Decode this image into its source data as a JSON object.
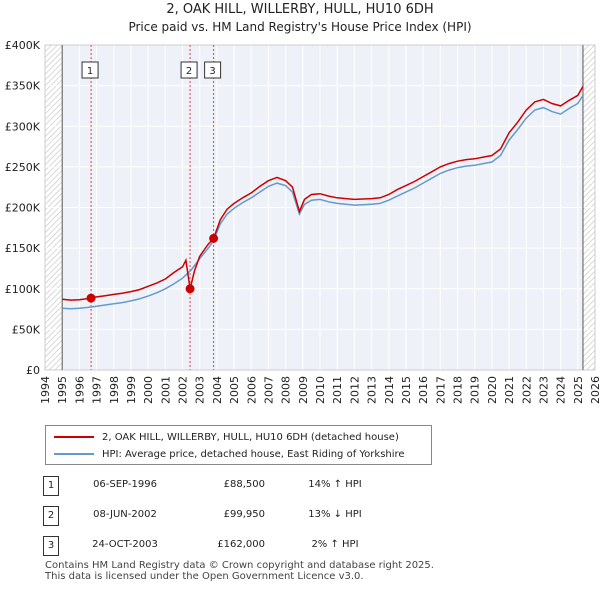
{
  "chart_data": {
    "type": "line",
    "title": "2, OAK HILL, WILLERBY, HULL, HU10 6DH",
    "subtitle": "Price paid vs. HM Land Registry's House Price Index (HPI)",
    "xlim": [
      1994,
      2026
    ],
    "ylim": [
      0,
      400000
    ],
    "y_ticks": [
      0,
      50000,
      100000,
      150000,
      200000,
      250000,
      300000,
      350000,
      400000
    ],
    "y_tick_labels": [
      "£0",
      "£50K",
      "£100K",
      "£150K",
      "£200K",
      "£250K",
      "£300K",
      "£350K",
      "£400K"
    ],
    "x_ticks": [
      1994,
      1995,
      1996,
      1997,
      1998,
      1999,
      2000,
      2001,
      2002,
      2003,
      2004,
      2005,
      2006,
      2007,
      2008,
      2009,
      2010,
      2011,
      2012,
      2013,
      2014,
      2015,
      2016,
      2017,
      2018,
      2019,
      2020,
      2021,
      2022,
      2023,
      2024,
      2025,
      2026
    ],
    "x_tick_labels": [
      "1994",
      "1995",
      "1996",
      "1997",
      "1998",
      "1999",
      "2000",
      "2001",
      "2002",
      "2003",
      "2004",
      "2005",
      "2006",
      "2007",
      "2008",
      "2009",
      "2010",
      "2011",
      "2012",
      "2013",
      "2014",
      "2015",
      "2016",
      "2017",
      "2018",
      "2019",
      "2020",
      "2021",
      "2022",
      "2023",
      "2024",
      "2025",
      "2026"
    ],
    "data_start": 1995.0,
    "data_end": 2025.3,
    "grid": true,
    "series": [
      {
        "name": "2, OAK HILL, WILLERBY, HULL, HU10 6DH (detached house)",
        "color": "#cc0000",
        "x": [
          1995,
          1995.5,
          1996,
          1996.68,
          1997,
          1997.5,
          1998,
          1998.5,
          1999,
          1999.5,
          2000,
          2000.5,
          2001,
          2001.5,
          2002,
          2002.2,
          2002.44,
          2002.7,
          2003,
          2003.5,
          2003.81,
          2004.2,
          2004.6,
          2005,
          2005.5,
          2006,
          2006.5,
          2007,
          2007.5,
          2008,
          2008.4,
          2008.8,
          2009.1,
          2009.5,
          2010,
          2010.5,
          2011,
          2011.5,
          2012,
          2012.5,
          2013,
          2013.5,
          2014,
          2014.5,
          2015,
          2015.5,
          2016,
          2016.5,
          2017,
          2017.5,
          2018,
          2018.5,
          2019,
          2019.5,
          2020,
          2020.5,
          2021,
          2021.5,
          2022,
          2022.5,
          2023,
          2023.5,
          2024,
          2024.5,
          2025,
          2025.3
        ],
        "values": [
          87000,
          86000,
          86500,
          88500,
          90000,
          91500,
          93000,
          94500,
          96500,
          99000,
          103000,
          107000,
          112000,
          120000,
          127000,
          135000,
          99950,
          122000,
          140000,
          155000,
          162000,
          185000,
          198000,
          205000,
          212000,
          218000,
          226000,
          233000,
          237000,
          233000,
          225000,
          195000,
          210000,
          216000,
          217000,
          214000,
          212000,
          211000,
          210000,
          210500,
          211000,
          212000,
          216000,
          222000,
          227000,
          232000,
          238000,
          244000,
          250000,
          254000,
          257000,
          259000,
          260000,
          262000,
          264000,
          272000,
          292000,
          305000,
          320000,
          330000,
          333000,
          328000,
          325000,
          332000,
          338000,
          349000
        ]
      },
      {
        "name": "HPI: Average price, detached house, East Riding of Yorkshire",
        "color": "#6699cc",
        "x": [
          1995,
          1995.5,
          1996,
          1996.5,
          1997,
          1997.5,
          1998,
          1998.5,
          1999,
          1999.5,
          2000,
          2000.5,
          2001,
          2001.5,
          2002,
          2002.5,
          2003,
          2003.5,
          2003.81,
          2004.2,
          2004.6,
          2005,
          2005.5,
          2006,
          2006.5,
          2007,
          2007.5,
          2008,
          2008.4,
          2008.8,
          2009.1,
          2009.5,
          2010,
          2010.5,
          2011,
          2011.5,
          2012,
          2012.5,
          2013,
          2013.5,
          2014,
          2014.5,
          2015,
          2015.5,
          2016,
          2016.5,
          2017,
          2017.5,
          2018,
          2018.5,
          2019,
          2019.5,
          2020,
          2020.5,
          2021,
          2021.5,
          2022,
          2022.5,
          2023,
          2023.5,
          2024,
          2024.5,
          2025,
          2025.3
        ],
        "values": [
          76000,
          75500,
          76000,
          77000,
          78500,
          80000,
          81500,
          83000,
          85000,
          87500,
          91000,
          95000,
          100000,
          106000,
          113000,
          123000,
          137000,
          150000,
          159000,
          180000,
          192000,
          199000,
          206000,
          212000,
          219000,
          226000,
          230000,
          227000,
          219000,
          192000,
          204000,
          209000,
          210000,
          207000,
          205000,
          204000,
          203000,
          203500,
          204000,
          205000,
          209000,
          214000,
          219000,
          224000,
          230000,
          236000,
          242000,
          246000,
          249000,
          251000,
          252000,
          254000,
          256000,
          264000,
          283000,
          296000,
          310000,
          320000,
          323000,
          318000,
          315000,
          322000,
          328000,
          338000
        ]
      }
    ],
    "transactions": [
      {
        "label": "1",
        "x": 1996.68,
        "value": 88500,
        "date": "06-SEP-1996",
        "price": "£88,500",
        "hpi": "14% ↑ HPI"
      },
      {
        "label": "2",
        "x": 2002.44,
        "value": 99950,
        "date": "08-JUN-2002",
        "price": "£99,950",
        "hpi": "13% ↓ HPI"
      },
      {
        "label": "3",
        "x": 2003.81,
        "value": 162000,
        "date": "24-OCT-2003",
        "price": "£162,000",
        "hpi": "2% ↑ HPI"
      }
    ]
  },
  "legend": {
    "property_label": "2, OAK HILL, WILLERBY, HULL, HU10 6DH (detached house)",
    "hpi_label": "HPI: Average price, detached house, East Riding of Yorkshire",
    "property_color": "#cc0000",
    "hpi_color": "#6699cc"
  },
  "footer": {
    "line1": "Contains HM Land Registry data © Crown copyright and database right 2025.",
    "line2": "This data is licensed under the Open Government Licence v3.0."
  }
}
